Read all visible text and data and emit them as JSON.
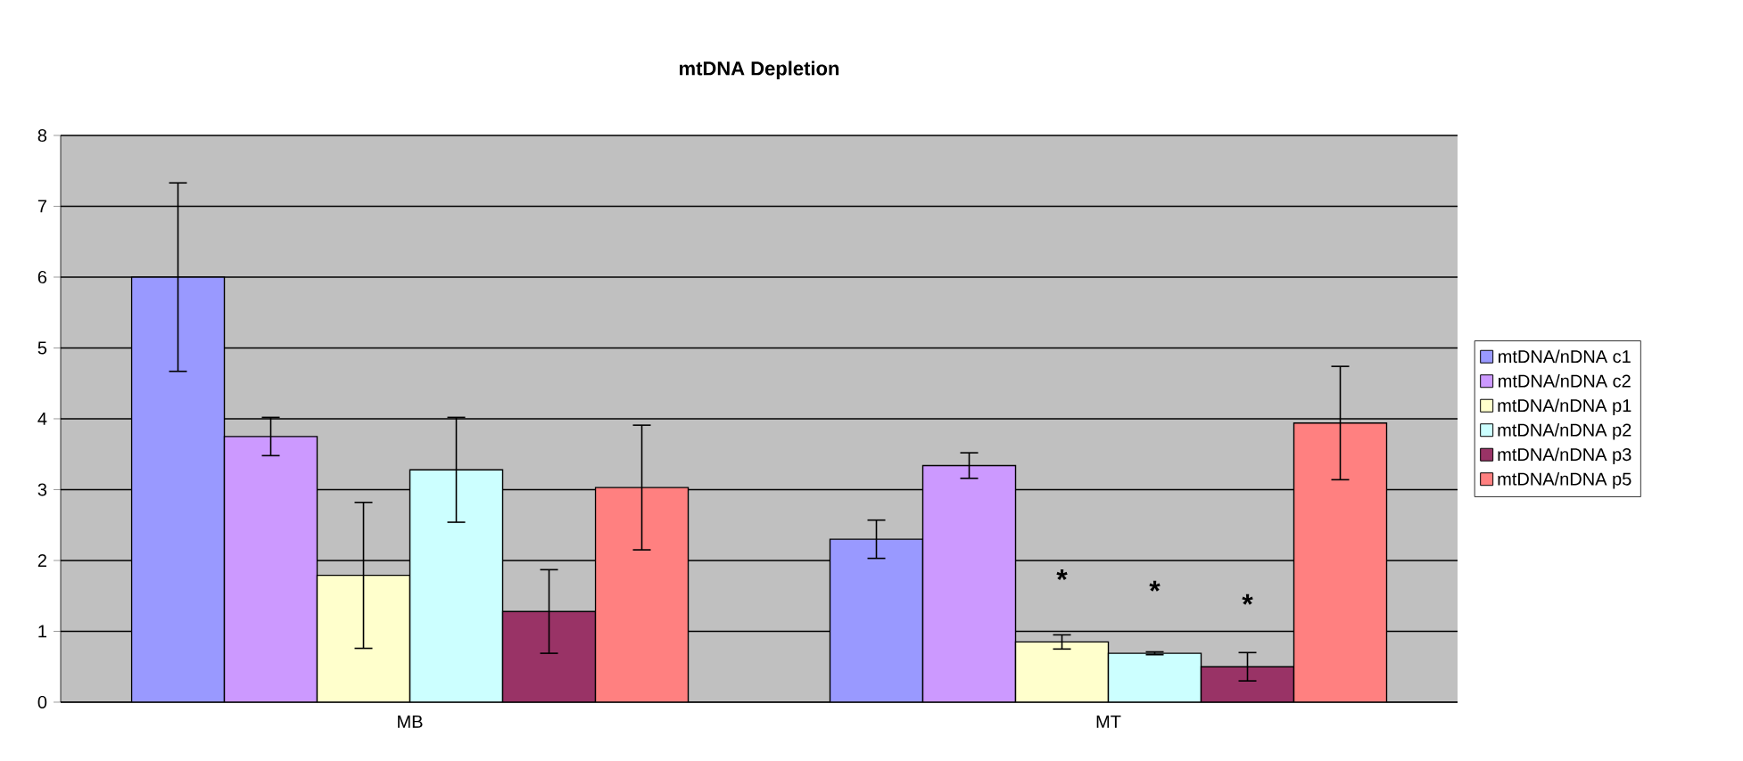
{
  "chart_data": {
    "type": "bar",
    "title": "mtDNA Depletion",
    "categories": [
      "MB",
      "MT"
    ],
    "series": [
      {
        "name": "mtDNA/nDNA c1",
        "color": "#9999ff",
        "values": [
          6.0,
          2.3
        ],
        "errors": [
          1.33,
          0.27
        ]
      },
      {
        "name": "mtDNA/nDNA c2",
        "color": "#cc99ff",
        "values": [
          3.75,
          3.34
        ],
        "errors": [
          0.27,
          0.18
        ]
      },
      {
        "name": "mtDNA/nDNA p1",
        "color": "#ffffcc",
        "values": [
          1.79,
          0.85
        ],
        "errors": [
          1.03,
          0.1
        ],
        "value_labels": [
          null,
          "*"
        ]
      },
      {
        "name": "mtDNA/nDNA p2",
        "color": "#ccffff",
        "values": [
          3.28,
          0.69
        ],
        "errors": [
          0.74,
          0.02
        ],
        "value_labels": [
          null,
          "*"
        ]
      },
      {
        "name": "mtDNA/nDNA p3",
        "color": "#993366",
        "values": [
          1.28,
          0.5
        ],
        "errors": [
          0.59,
          0.2
        ],
        "value_labels": [
          null,
          "*"
        ]
      },
      {
        "name": "mtDNA/nDNA p5",
        "color": "#ff8080",
        "values": [
          3.03,
          3.94
        ],
        "errors": [
          0.88,
          0.8
        ]
      }
    ],
    "ylim": [
      0,
      8
    ],
    "yticks": [
      0,
      1,
      2,
      3,
      4,
      5,
      6,
      7,
      8
    ],
    "grid": "y",
    "legend": "right"
  }
}
